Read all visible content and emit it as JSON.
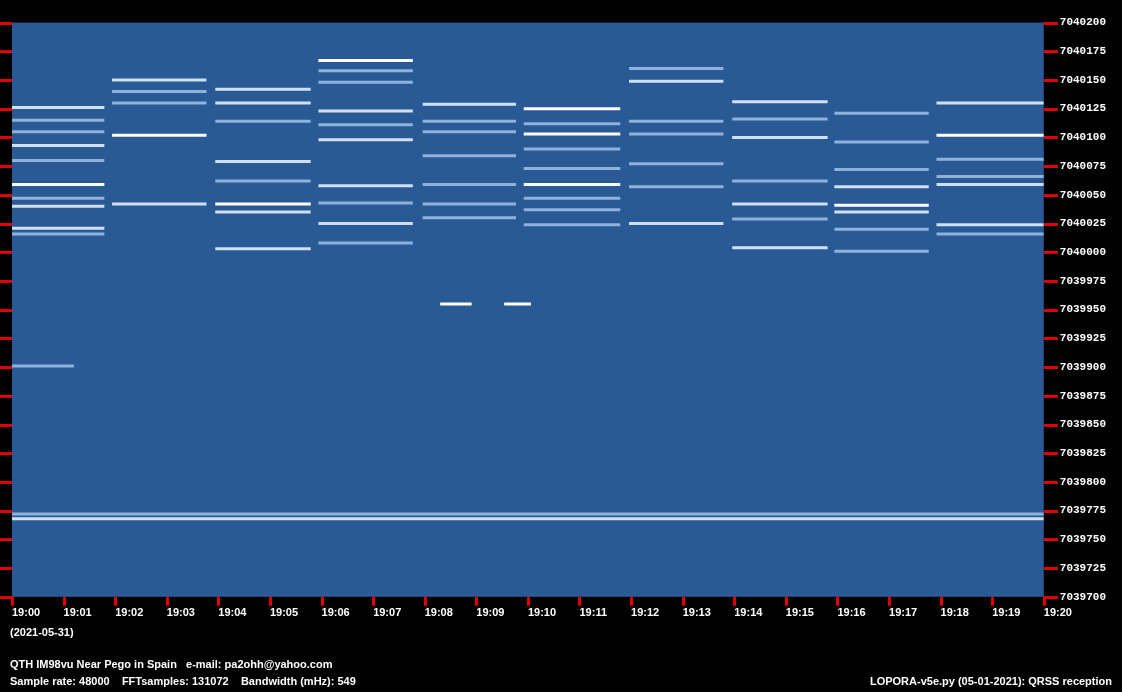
{
  "chart_data": {
    "type": "spectrogram",
    "xlim": [
      1140,
      1160
    ],
    "xticks": [
      {
        "value": 1140,
        "label": "19:00"
      },
      {
        "value": 1141,
        "label": "19:01"
      },
      {
        "value": 1142,
        "label": "19:02"
      },
      {
        "value": 1143,
        "label": "19:03"
      },
      {
        "value": 1144,
        "label": "19:04"
      },
      {
        "value": 1145,
        "label": "19:05"
      },
      {
        "value": 1146,
        "label": "19:06"
      },
      {
        "value": 1147,
        "label": "19:07"
      },
      {
        "value": 1148,
        "label": "19:08"
      },
      {
        "value": 1149,
        "label": "19:09"
      },
      {
        "value": 1150,
        "label": "19:10"
      },
      {
        "value": 1151,
        "label": "19:11"
      },
      {
        "value": 1152,
        "label": "19:12"
      },
      {
        "value": 1153,
        "label": "19:13"
      },
      {
        "value": 1154,
        "label": "19:14"
      },
      {
        "value": 1155,
        "label": "19:15"
      },
      {
        "value": 1156,
        "label": "19:16"
      },
      {
        "value": 1157,
        "label": "19:17"
      },
      {
        "value": 1158,
        "label": "19:18"
      },
      {
        "value": 1159,
        "label": "19:19"
      },
      {
        "value": 1160,
        "label": "19:20"
      }
    ],
    "ylim": [
      7039700,
      7040200
    ],
    "yticks": [
      7039700,
      7039725,
      7039750,
      7039775,
      7039800,
      7039825,
      7039850,
      7039875,
      7039900,
      7039925,
      7039950,
      7039975,
      7040000,
      7040025,
      7040050,
      7040075,
      7040100,
      7040125,
      7040150,
      7040175,
      7040200
    ],
    "grid": false,
    "annotations": [
      "(2021-05-31)",
      "QTH IM98vu Near Pego in Spain   e-mail: pa2ohh@yahoo.com",
      "Sample rate: 48000    FFTsamples: 131072    Bandwidth (mHz): 549",
      "LOPORA-v5e.py (05-01-2021): QRSS reception"
    ],
    "segments": [
      {
        "start": 1140.0,
        "end": 1141.79,
        "frequency": 7040126,
        "color": "#cfe0f2"
      },
      {
        "start": 1140.0,
        "end": 1141.79,
        "frequency": 7040115,
        "color": "#8fb2da"
      },
      {
        "start": 1140.0,
        "end": 1141.79,
        "frequency": 7040105,
        "color": "#8fb2da"
      },
      {
        "start": 1140.0,
        "end": 1141.79,
        "frequency": 7040093,
        "color": "#cfe0f2"
      },
      {
        "start": 1140.0,
        "end": 1141.79,
        "frequency": 7040080,
        "color": "#8fb2da"
      },
      {
        "start": 1140.0,
        "end": 1141.79,
        "frequency": 7040059,
        "color": "#ffffff"
      },
      {
        "start": 1140.0,
        "end": 1141.79,
        "frequency": 7040047,
        "color": "#8fb2da"
      },
      {
        "start": 1140.0,
        "end": 1141.79,
        "frequency": 7040040,
        "color": "#cfe0f2"
      },
      {
        "start": 1140.0,
        "end": 1141.79,
        "frequency": 7040021,
        "color": "#cfe0f2"
      },
      {
        "start": 1140.0,
        "end": 1141.79,
        "frequency": 7040016,
        "color": "#8fb2da"
      },
      {
        "start": 1141.94,
        "end": 1143.77,
        "frequency": 7040150,
        "color": "#cfe0f2"
      },
      {
        "start": 1141.94,
        "end": 1143.77,
        "frequency": 7040140,
        "color": "#8fb2da"
      },
      {
        "start": 1141.94,
        "end": 1143.77,
        "frequency": 7040130,
        "color": "#8fb2da"
      },
      {
        "start": 1141.94,
        "end": 1143.77,
        "frequency": 7040102,
        "color": "#ffffff"
      },
      {
        "start": 1141.94,
        "end": 1143.77,
        "frequency": 7040042,
        "color": "#cfe0f2"
      },
      {
        "start": 1143.94,
        "end": 1145.79,
        "frequency": 7040142,
        "color": "#cfe0f2"
      },
      {
        "start": 1143.94,
        "end": 1145.79,
        "frequency": 7040130,
        "color": "#cfe0f2"
      },
      {
        "start": 1143.94,
        "end": 1145.79,
        "frequency": 7040114,
        "color": "#8fb2da"
      },
      {
        "start": 1143.94,
        "end": 1145.79,
        "frequency": 7040079,
        "color": "#cfe0f2"
      },
      {
        "start": 1143.94,
        "end": 1145.79,
        "frequency": 7040062,
        "color": "#8fb2da"
      },
      {
        "start": 1143.94,
        "end": 1145.79,
        "frequency": 7040042,
        "color": "#ffffff"
      },
      {
        "start": 1143.94,
        "end": 1145.79,
        "frequency": 7040035,
        "color": "#cfe0f2"
      },
      {
        "start": 1143.94,
        "end": 1145.79,
        "frequency": 7040003,
        "color": "#cfe0f2"
      },
      {
        "start": 1145.94,
        "end": 1147.77,
        "frequency": 7040167,
        "color": "#ffffff"
      },
      {
        "start": 1145.94,
        "end": 1147.77,
        "frequency": 7040158,
        "color": "#8fb2da"
      },
      {
        "start": 1145.94,
        "end": 1147.77,
        "frequency": 7040148,
        "color": "#8fb2da"
      },
      {
        "start": 1145.94,
        "end": 1147.77,
        "frequency": 7040123,
        "color": "#cfe0f2"
      },
      {
        "start": 1145.94,
        "end": 1147.77,
        "frequency": 7040111,
        "color": "#8fb2da"
      },
      {
        "start": 1145.94,
        "end": 1147.77,
        "frequency": 7040098,
        "color": "#cfe0f2"
      },
      {
        "start": 1145.94,
        "end": 1147.77,
        "frequency": 7040058,
        "color": "#cfe0f2"
      },
      {
        "start": 1145.94,
        "end": 1147.77,
        "frequency": 7040043,
        "color": "#8fb2da"
      },
      {
        "start": 1145.94,
        "end": 1147.77,
        "frequency": 7040025,
        "color": "#cfe0f2"
      },
      {
        "start": 1145.94,
        "end": 1147.77,
        "frequency": 7040008,
        "color": "#8fb2da"
      },
      {
        "start": 1147.96,
        "end": 1149.77,
        "frequency": 7040129,
        "color": "#cfe0f2"
      },
      {
        "start": 1147.96,
        "end": 1149.77,
        "frequency": 7040114,
        "color": "#8fb2da"
      },
      {
        "start": 1147.96,
        "end": 1149.77,
        "frequency": 7040105,
        "color": "#8fb2da"
      },
      {
        "start": 1147.96,
        "end": 1149.77,
        "frequency": 7040084,
        "color": "#8fb2da"
      },
      {
        "start": 1147.96,
        "end": 1149.77,
        "frequency": 7040059,
        "color": "#8fb2da"
      },
      {
        "start": 1147.96,
        "end": 1149.77,
        "frequency": 7040042,
        "color": "#8fb2da"
      },
      {
        "start": 1147.96,
        "end": 1149.77,
        "frequency": 7040030,
        "color": "#8fb2da"
      },
      {
        "start": 1148.3,
        "end": 1148.91,
        "frequency": 7039955,
        "color": "#ffffff"
      },
      {
        "start": 1149.54,
        "end": 1150.06,
        "frequency": 7039955,
        "color": "#ffffff"
      },
      {
        "start": 1149.92,
        "end": 1151.79,
        "frequency": 7040125,
        "color": "#ffffff"
      },
      {
        "start": 1149.92,
        "end": 1151.79,
        "frequency": 7040112,
        "color": "#8fb2da"
      },
      {
        "start": 1149.92,
        "end": 1151.79,
        "frequency": 7040103,
        "color": "#ffffff"
      },
      {
        "start": 1149.92,
        "end": 1151.79,
        "frequency": 7040090,
        "color": "#8fb2da"
      },
      {
        "start": 1149.92,
        "end": 1151.79,
        "frequency": 7040073,
        "color": "#8fb2da"
      },
      {
        "start": 1149.92,
        "end": 1151.79,
        "frequency": 7040059,
        "color": "#ffffff"
      },
      {
        "start": 1149.92,
        "end": 1151.79,
        "frequency": 7040047,
        "color": "#8fb2da"
      },
      {
        "start": 1149.92,
        "end": 1151.79,
        "frequency": 7040037,
        "color": "#8fb2da"
      },
      {
        "start": 1149.92,
        "end": 1151.79,
        "frequency": 7040024,
        "color": "#8fb2da"
      },
      {
        "start": 1151.96,
        "end": 1153.79,
        "frequency": 7040160,
        "color": "#8fb2da"
      },
      {
        "start": 1151.96,
        "end": 1153.79,
        "frequency": 7040149,
        "color": "#cfe0f2"
      },
      {
        "start": 1151.96,
        "end": 1153.79,
        "frequency": 7040114,
        "color": "#8fb2da"
      },
      {
        "start": 1151.96,
        "end": 1153.79,
        "frequency": 7040103,
        "color": "#8fb2da"
      },
      {
        "start": 1151.96,
        "end": 1153.79,
        "frequency": 7040077,
        "color": "#8fb2da"
      },
      {
        "start": 1151.96,
        "end": 1153.79,
        "frequency": 7040057,
        "color": "#8fb2da"
      },
      {
        "start": 1151.96,
        "end": 1153.79,
        "frequency": 7040025,
        "color": "#cfe0f2"
      },
      {
        "start": 1153.96,
        "end": 1155.81,
        "frequency": 7040131,
        "color": "#cfe0f2"
      },
      {
        "start": 1153.96,
        "end": 1155.81,
        "frequency": 7040116,
        "color": "#8fb2da"
      },
      {
        "start": 1153.96,
        "end": 1155.81,
        "frequency": 7040100,
        "color": "#cfe0f2"
      },
      {
        "start": 1153.96,
        "end": 1155.81,
        "frequency": 7040062,
        "color": "#8fb2da"
      },
      {
        "start": 1153.96,
        "end": 1155.81,
        "frequency": 7040042,
        "color": "#cfe0f2"
      },
      {
        "start": 1153.96,
        "end": 1155.81,
        "frequency": 7040029,
        "color": "#8fb2da"
      },
      {
        "start": 1153.96,
        "end": 1155.81,
        "frequency": 7040004,
        "color": "#cfe0f2"
      },
      {
        "start": 1155.94,
        "end": 1157.77,
        "frequency": 7040121,
        "color": "#8fb2da"
      },
      {
        "start": 1155.94,
        "end": 1157.77,
        "frequency": 7040096,
        "color": "#8fb2da"
      },
      {
        "start": 1155.94,
        "end": 1157.77,
        "frequency": 7040072,
        "color": "#8fb2da"
      },
      {
        "start": 1155.94,
        "end": 1157.77,
        "frequency": 7040057,
        "color": "#cfe0f2"
      },
      {
        "start": 1155.94,
        "end": 1157.77,
        "frequency": 7040041,
        "color": "#ffffff"
      },
      {
        "start": 1155.94,
        "end": 1157.77,
        "frequency": 7040035,
        "color": "#cfe0f2"
      },
      {
        "start": 1155.94,
        "end": 1157.77,
        "frequency": 7040020,
        "color": "#8fb2da"
      },
      {
        "start": 1155.94,
        "end": 1157.77,
        "frequency": 7040001,
        "color": "#8fb2da"
      },
      {
        "start": 1157.92,
        "end": 1160.0,
        "frequency": 7040130,
        "color": "#cfe0f2"
      },
      {
        "start": 1157.92,
        "end": 1160.0,
        "frequency": 7040102,
        "color": "#ffffff"
      },
      {
        "start": 1157.92,
        "end": 1160.0,
        "frequency": 7040081,
        "color": "#8fb2da"
      },
      {
        "start": 1157.92,
        "end": 1160.0,
        "frequency": 7040066,
        "color": "#8fb2da"
      },
      {
        "start": 1157.92,
        "end": 1160.0,
        "frequency": 7040059,
        "color": "#cfe0f2"
      },
      {
        "start": 1157.92,
        "end": 1160.0,
        "frequency": 7040024,
        "color": "#cfe0f2"
      },
      {
        "start": 1157.92,
        "end": 1160.0,
        "frequency": 7040016,
        "color": "#8fb2da"
      },
      {
        "start": 1140.0,
        "end": 1141.2,
        "frequency": 7039901,
        "color": "#8fb2da"
      },
      {
        "start": 1140.0,
        "end": 1160.0,
        "frequency": 7039772,
        "color": "#8fb2da"
      },
      {
        "start": 1140.0,
        "end": 1160.0,
        "frequency": 7039768,
        "color": "#cfe0f2"
      }
    ]
  }
}
